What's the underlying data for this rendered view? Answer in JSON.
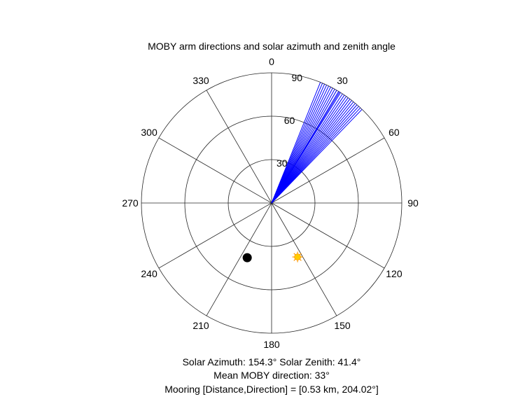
{
  "chart_data": {
    "type": "scatter",
    "coordinate_system": "polar",
    "title": "MOBY arm directions and solar azimuth and zenith angle",
    "theta_zero_location": "top",
    "theta_direction": "clockwise",
    "theta_ticks": [
      "0",
      "30",
      "60",
      "90",
      "120",
      "150",
      "180",
      "210",
      "240",
      "270",
      "300",
      "330"
    ],
    "theta_tick_values": [
      0,
      30,
      60,
      90,
      120,
      150,
      180,
      210,
      240,
      270,
      300,
      330
    ],
    "r_ticks": [
      "30",
      "60",
      "90"
    ],
    "r_tick_values": [
      30,
      60,
      90
    ],
    "rlim": [
      0,
      90
    ],
    "grid": true,
    "series": [
      {
        "kind": "radial_lines",
        "color": "#0000ff",
        "r": 90,
        "directions": [
          22.0,
          23.0,
          24.0,
          25.0,
          26.0,
          27.0,
          28.0,
          29.0,
          30.0,
          31.0,
          31.5,
          32.0,
          33.0,
          34.0,
          35.0,
          36.0,
          37.0,
          38.0,
          39.0,
          40.0,
          41.0,
          42.0,
          43.0,
          44.0
        ]
      },
      {
        "kind": "point",
        "color": "#000000",
        "marker": "filled-circle",
        "direction": 204.02,
        "r": 41.4
      },
      {
        "kind": "point",
        "color": "#ffcc00",
        "marker": "sun",
        "direction": 154.3,
        "r": 41.4
      }
    ],
    "annotations": [
      "Solar Azimuth: 154.3°   Solar Zenith: 41.4°",
      "Mean MOBY direction: 33°",
      "Mooring [Distance,Direction] = [0.53 km, 204.02°]"
    ]
  },
  "colors": {
    "grid": "#262626",
    "arm_lines": "#0000ff",
    "mooring_marker": "#000000",
    "sun_marker": "#ffcc00",
    "sun_outline": "#ff9900"
  }
}
